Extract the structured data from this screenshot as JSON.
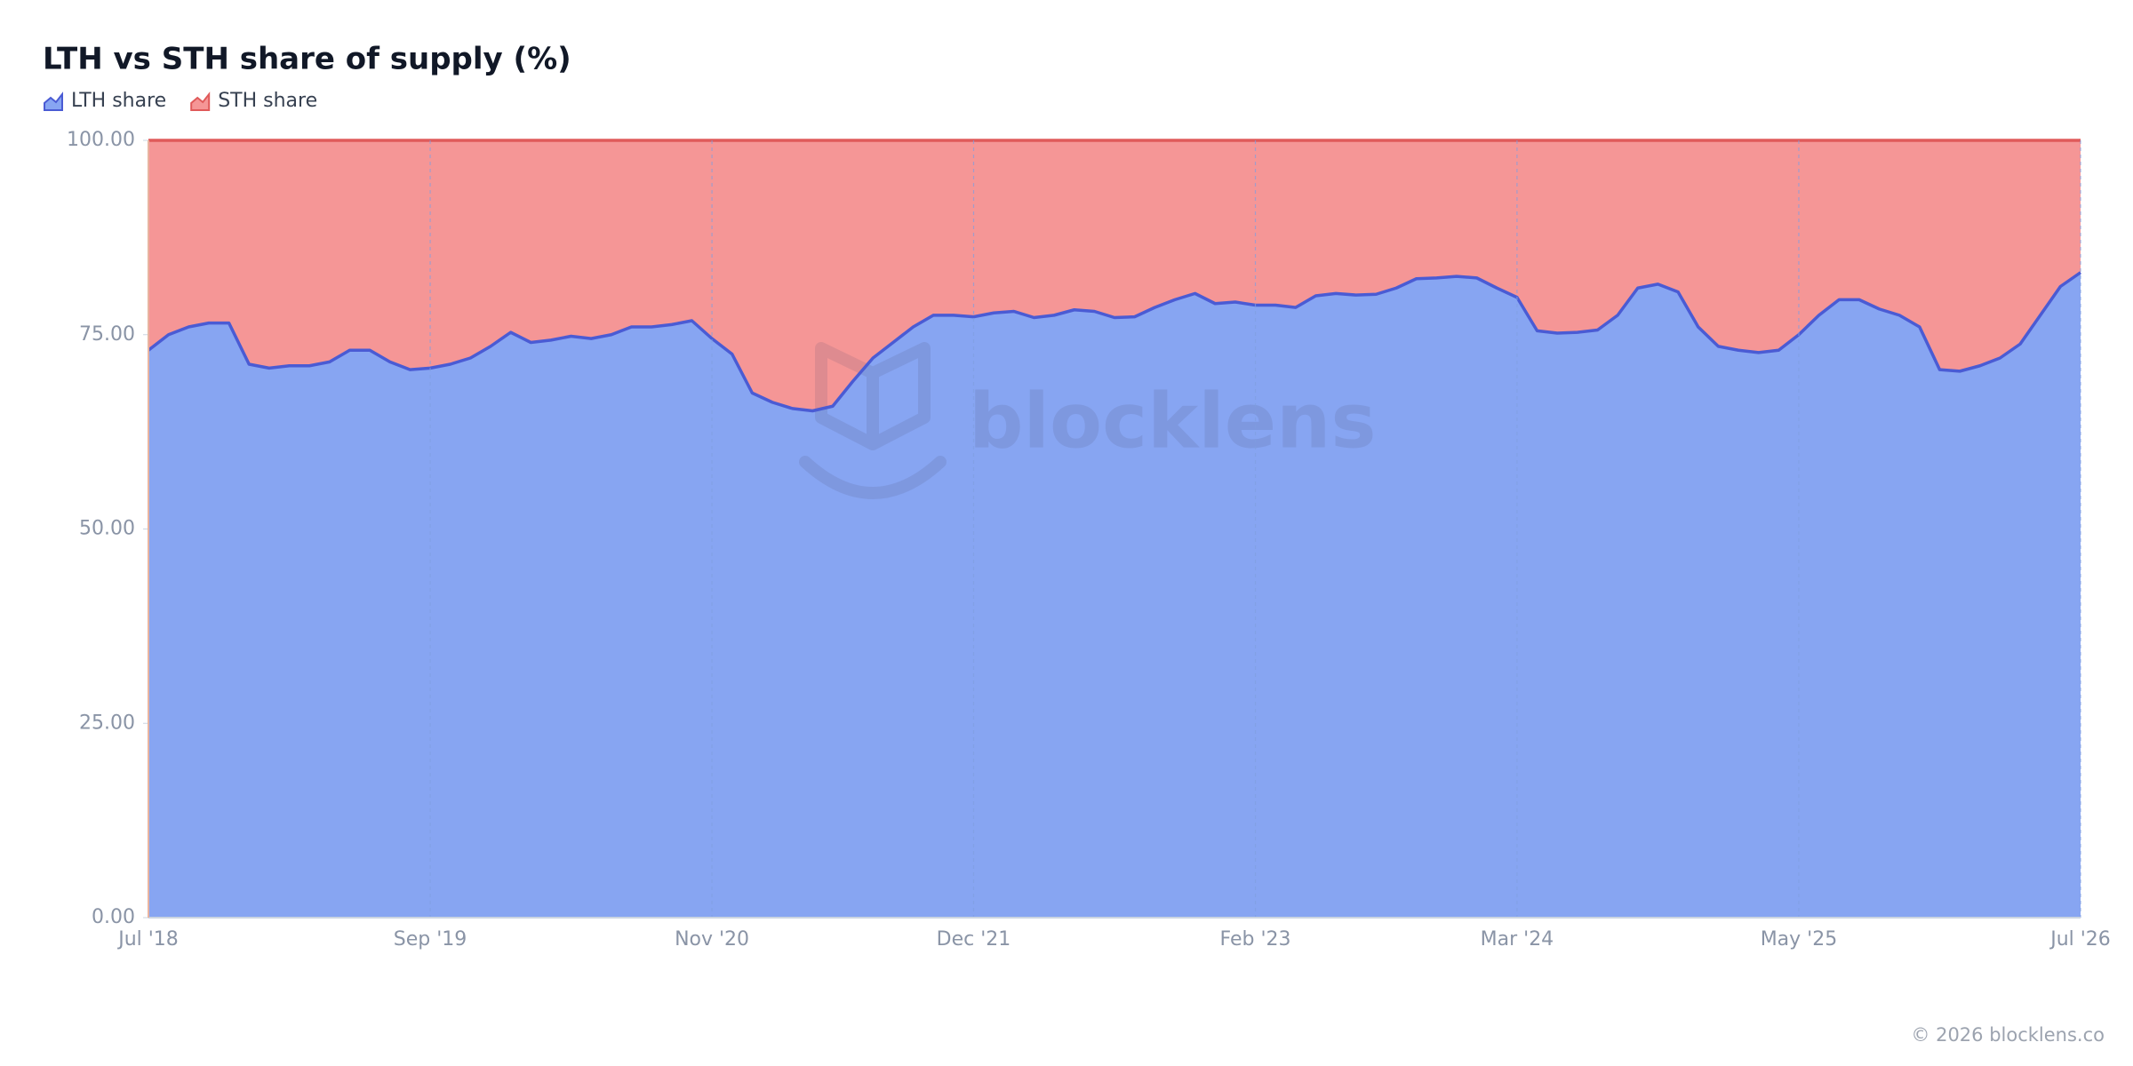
{
  "chart_data": {
    "type": "stacked-area",
    "title": "LTH vs STH share of supply (%)",
    "watermark": "blocklens",
    "footer": "© 2026 blocklens.co",
    "x": [
      "2018-07",
      "2018-08",
      "2018-09",
      "2018-10",
      "2018-11",
      "2018-12",
      "2019-01",
      "2019-02",
      "2019-03",
      "2019-04",
      "2019-05",
      "2019-06",
      "2019-07",
      "2019-08",
      "2019-09",
      "2019-10",
      "2019-11",
      "2019-12",
      "2020-01",
      "2020-02",
      "2020-03",
      "2020-04",
      "2020-05",
      "2020-06",
      "2020-07",
      "2020-08",
      "2020-09",
      "2020-10",
      "2020-11",
      "2020-12",
      "2021-01",
      "2021-02",
      "2021-03",
      "2021-04",
      "2021-05",
      "2021-06",
      "2021-07",
      "2021-08",
      "2021-09",
      "2021-10",
      "2021-11",
      "2021-12",
      "2022-01",
      "2022-02",
      "2022-03",
      "2022-04",
      "2022-05",
      "2022-06",
      "2022-07",
      "2022-08",
      "2022-09",
      "2022-10",
      "2022-11",
      "2022-12",
      "2023-01",
      "2023-02",
      "2023-03",
      "2023-04",
      "2023-05",
      "2023-06",
      "2023-07",
      "2023-08",
      "2023-09",
      "2023-10",
      "2023-11",
      "2023-12",
      "2024-01",
      "2024-02",
      "2024-03",
      "2024-04",
      "2024-05",
      "2024-06",
      "2024-07",
      "2024-08",
      "2024-09",
      "2024-10",
      "2024-11",
      "2024-12",
      "2025-01",
      "2025-02",
      "2025-03",
      "2025-04",
      "2025-05",
      "2025-06",
      "2025-07",
      "2025-08",
      "2025-09",
      "2025-10",
      "2025-11",
      "2025-12",
      "2026-01",
      "2026-02",
      "2026-03",
      "2026-04",
      "2026-05",
      "2026-06",
      "2026-07"
    ],
    "series": [
      {
        "name": "LTH share",
        "color": "#87a5f2",
        "line_color": "#4a5bd4",
        "values": [
          73,
          75,
          76,
          76.5,
          76.5,
          71.2,
          70.7,
          71,
          71,
          71.5,
          73,
          73,
          71.5,
          70.5,
          70.7,
          71.2,
          72,
          73.5,
          75.3,
          74,
          74.3,
          74.8,
          74.5,
          75,
          76,
          76,
          76.3,
          76.8,
          74.5,
          72.5,
          67.5,
          66.3,
          65.5,
          65.2,
          65.8,
          69,
          72,
          74,
          76,
          77.5,
          77.5,
          77.3,
          77.8,
          78,
          77.2,
          77.5,
          78.2,
          78,
          77.2,
          77.3,
          78.5,
          79.5,
          80.3,
          79,
          79.2,
          78.8,
          78.8,
          78.5,
          80,
          80.3,
          80.1,
          80.2,
          81,
          82.2,
          82.3,
          82.5,
          82.3,
          81,
          79.8,
          75.5,
          75.2,
          75.3,
          75.6,
          77.5,
          81,
          81.5,
          80.5,
          76,
          73.5,
          73,
          72.7,
          73,
          75,
          77.5,
          79.5,
          79.5,
          78.3,
          77.5,
          76,
          70.5,
          70.3,
          71,
          72,
          73.8,
          77.5,
          81.2,
          83
        ]
      },
      {
        "name": "STH share",
        "color": "#f59696",
        "line_color": "#e05a5a",
        "values": [
          27,
          25,
          24,
          23.5,
          23.5,
          28.8,
          29.3,
          29,
          29,
          28.5,
          27,
          27,
          28.5,
          29.5,
          29.3,
          28.8,
          28,
          26.5,
          24.7,
          26,
          25.7,
          25.2,
          25.5,
          25,
          24,
          24,
          23.7,
          23.2,
          25.5,
          27.5,
          32.5,
          33.7,
          34.5,
          34.8,
          34.2,
          31,
          28,
          26,
          24,
          22.5,
          22.5,
          22.7,
          22.2,
          22,
          22.8,
          22.5,
          21.8,
          22,
          22.8,
          22.7,
          21.5,
          20.5,
          19.7,
          21,
          20.8,
          21.2,
          21.2,
          21.5,
          20,
          19.7,
          19.9,
          19.8,
          19,
          17.8,
          17.7,
          17.5,
          17.7,
          19,
          20.2,
          24.5,
          24.8,
          24.7,
          24.4,
          22.5,
          19,
          18.5,
          19.5,
          24,
          26.5,
          27,
          27.3,
          27,
          25,
          22.5,
          20.5,
          20.5,
          21.7,
          22.5,
          24,
          29.5,
          29.7,
          29,
          28,
          26.2,
          22.5,
          18.8,
          17
        ]
      }
    ],
    "ylim": [
      0,
      100
    ],
    "yticks": [
      {
        "value": 0,
        "label": "0.00"
      },
      {
        "value": 25,
        "label": "25.00"
      },
      {
        "value": 50,
        "label": "50.00"
      },
      {
        "value": 75,
        "label": "75.00"
      },
      {
        "value": 100,
        "label": "100.00"
      }
    ],
    "xticks": [
      {
        "value": "2018-07",
        "label": "Jul '18"
      },
      {
        "value": "2019-09",
        "label": "Sep '19"
      },
      {
        "value": "2020-11",
        "label": "Nov '20"
      },
      {
        "value": "2021-12",
        "label": "Dec '21"
      },
      {
        "value": "2023-02",
        "label": "Feb '23"
      },
      {
        "value": "2024-03",
        "label": "Mar '24"
      },
      {
        "value": "2025-05",
        "label": "May '25"
      },
      {
        "value": "2026-07",
        "label": "Jul '26"
      }
    ],
    "grid": true
  }
}
